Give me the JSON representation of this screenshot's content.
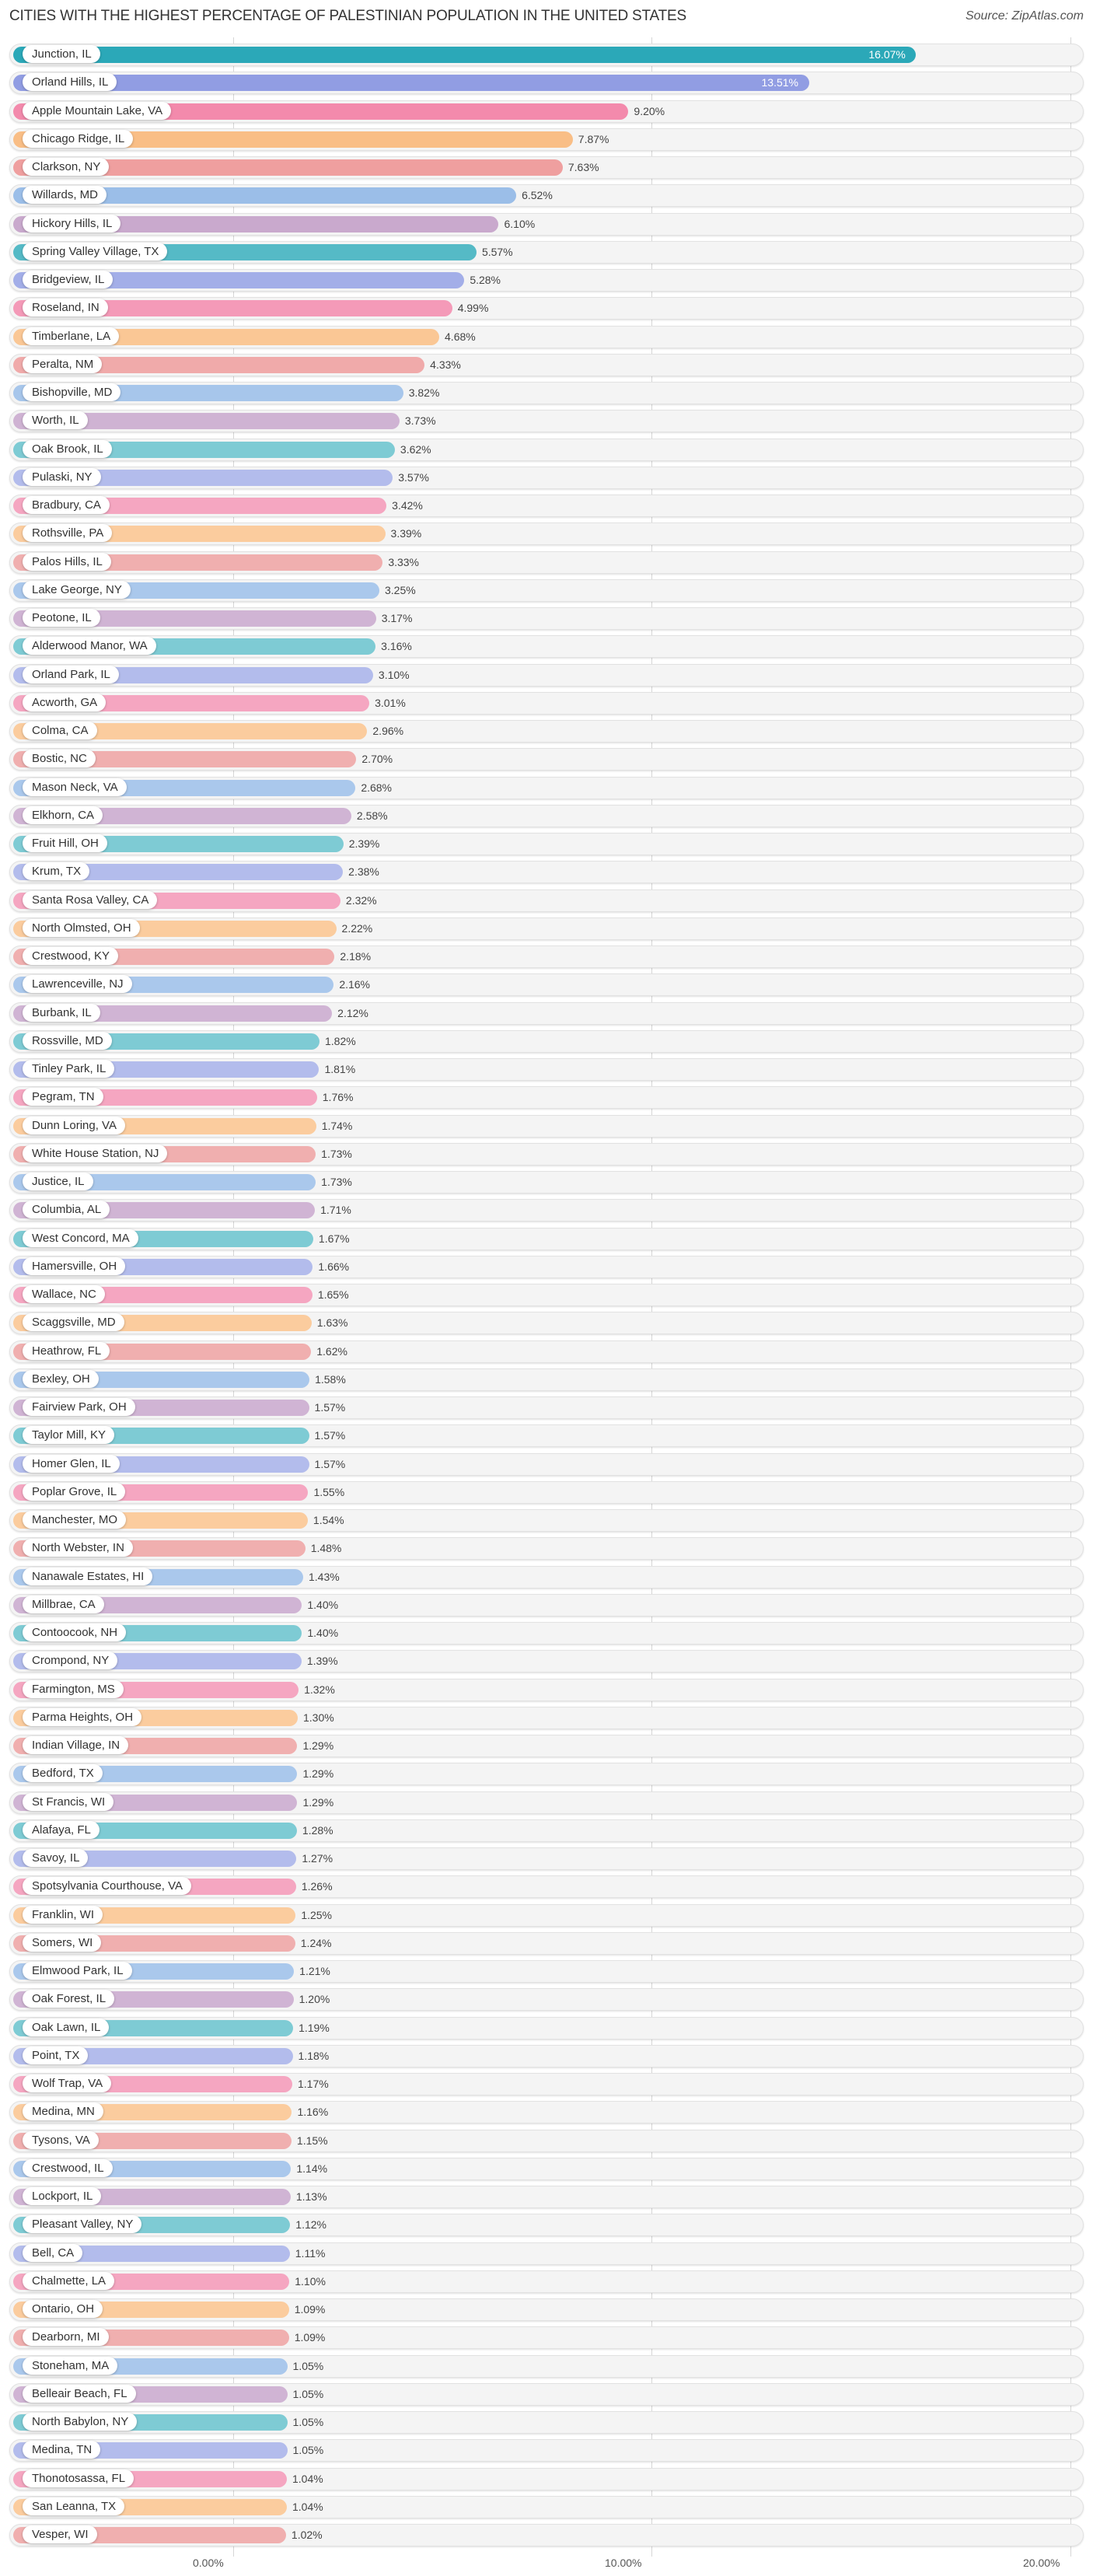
{
  "title": "CITIES WITH THE HIGHEST PERCENTAGE OF PALESTINIAN POPULATION IN THE UNITED STATES",
  "source": "Source: ZipAtlas.com",
  "axis": {
    "ticks": [
      "0.00%",
      "10.00%",
      "20.00%"
    ]
  },
  "chart_data": {
    "type": "bar",
    "orientation": "horizontal",
    "title": "CITIES WITH THE HIGHEST PERCENTAGE OF PALESTINIAN POPULATION IN THE UNITED STATES",
    "xlabel": "",
    "ylabel": "",
    "xlim": [
      0,
      20
    ],
    "x_ticks": [
      "0.00%",
      "10.00%",
      "20.00%"
    ],
    "grid": true,
    "legend": null,
    "categories": [
      "Junction, IL",
      "Orland Hills, IL",
      "Apple Mountain Lake, VA",
      "Chicago Ridge, IL",
      "Clarkson, NY",
      "Willards, MD",
      "Hickory Hills, IL",
      "Spring Valley Village, TX",
      "Bridgeview, IL",
      "Roseland, IN",
      "Timberlane, LA",
      "Peralta, NM",
      "Bishopville, MD",
      "Worth, IL",
      "Oak Brook, IL",
      "Pulaski, NY",
      "Bradbury, CA",
      "Rothsville, PA",
      "Palos Hills, IL",
      "Lake George, NY",
      "Peotone, IL",
      "Alderwood Manor, WA",
      "Orland Park, IL",
      "Acworth, GA",
      "Colma, CA",
      "Bostic, NC",
      "Mason Neck, VA",
      "Elkhorn, CA",
      "Fruit Hill, OH",
      "Krum, TX",
      "Santa Rosa Valley, CA",
      "North Olmsted, OH",
      "Crestwood, KY",
      "Lawrenceville, NJ",
      "Burbank, IL",
      "Rossville, MD",
      "Tinley Park, IL",
      "Pegram, TN",
      "Dunn Loring, VA",
      "White House Station, NJ",
      "Justice, IL",
      "Columbia, AL",
      "West Concord, MA",
      "Hamersville, OH",
      "Wallace, NC",
      "Scaggsville, MD",
      "Heathrow, FL",
      "Bexley, OH",
      "Fairview Park, OH",
      "Taylor Mill, KY",
      "Homer Glen, IL",
      "Poplar Grove, IL",
      "Manchester, MO",
      "North Webster, IN",
      "Nanawale Estates, HI",
      "Millbrae, CA",
      "Contoocook, NH",
      "Crompond, NY",
      "Farmington, MS",
      "Parma Heights, OH",
      "Indian Village, IN",
      "Bedford, TX",
      "St Francis, WI",
      "Alafaya, FL",
      "Savoy, IL",
      "Spotsylvania Courthouse, VA",
      "Franklin, WI",
      "Somers, WI",
      "Elmwood Park, IL",
      "Oak Forest, IL",
      "Oak Lawn, IL",
      "Point, TX",
      "Wolf Trap, VA",
      "Medina, MN",
      "Tysons, VA",
      "Crestwood, IL",
      "Lockport, IL",
      "Pleasant Valley, NY",
      "Bell, CA",
      "Chalmette, LA",
      "Ontario, OH",
      "Dearborn, MI",
      "Stoneham, MA",
      "Belleair Beach, FL",
      "North Babylon, NY",
      "Medina, TN",
      "Thonotosassa, FL",
      "San Leanna, TX",
      "Vesper, WI"
    ],
    "values": [
      16.07,
      13.51,
      9.2,
      7.87,
      7.63,
      6.52,
      6.1,
      5.57,
      5.28,
      4.99,
      4.68,
      4.33,
      3.82,
      3.73,
      3.62,
      3.57,
      3.42,
      3.39,
      3.33,
      3.25,
      3.17,
      3.16,
      3.1,
      3.01,
      2.96,
      2.7,
      2.68,
      2.58,
      2.39,
      2.38,
      2.32,
      2.22,
      2.18,
      2.16,
      2.12,
      1.82,
      1.81,
      1.76,
      1.74,
      1.73,
      1.73,
      1.71,
      1.67,
      1.66,
      1.65,
      1.63,
      1.62,
      1.58,
      1.57,
      1.57,
      1.57,
      1.55,
      1.54,
      1.48,
      1.43,
      1.4,
      1.4,
      1.39,
      1.32,
      1.3,
      1.29,
      1.29,
      1.29,
      1.28,
      1.27,
      1.26,
      1.25,
      1.24,
      1.21,
      1.2,
      1.19,
      1.18,
      1.17,
      1.16,
      1.15,
      1.14,
      1.13,
      1.12,
      1.11,
      1.1,
      1.09,
      1.09,
      1.05,
      1.05,
      1.05,
      1.05,
      1.04,
      1.04,
      1.02
    ],
    "value_labels": [
      "16.07%",
      "13.51%",
      "9.20%",
      "7.87%",
      "7.63%",
      "6.52%",
      "6.10%",
      "5.57%",
      "5.28%",
      "4.99%",
      "4.68%",
      "4.33%",
      "3.82%",
      "3.73%",
      "3.62%",
      "3.57%",
      "3.42%",
      "3.39%",
      "3.33%",
      "3.25%",
      "3.17%",
      "3.16%",
      "3.10%",
      "3.01%",
      "2.96%",
      "2.70%",
      "2.68%",
      "2.58%",
      "2.39%",
      "2.38%",
      "2.32%",
      "2.22%",
      "2.18%",
      "2.16%",
      "2.12%",
      "1.82%",
      "1.81%",
      "1.76%",
      "1.74%",
      "1.73%",
      "1.73%",
      "1.71%",
      "1.67%",
      "1.66%",
      "1.65%",
      "1.63%",
      "1.62%",
      "1.58%",
      "1.57%",
      "1.57%",
      "1.57%",
      "1.55%",
      "1.54%",
      "1.48%",
      "1.43%",
      "1.40%",
      "1.40%",
      "1.39%",
      "1.32%",
      "1.30%",
      "1.29%",
      "1.29%",
      "1.29%",
      "1.28%",
      "1.27%",
      "1.26%",
      "1.25%",
      "1.24%",
      "1.21%",
      "1.20%",
      "1.19%",
      "1.18%",
      "1.17%",
      "1.16%",
      "1.15%",
      "1.14%",
      "1.13%",
      "1.12%",
      "1.11%",
      "1.10%",
      "1.09%",
      "1.09%",
      "1.05%",
      "1.05%",
      "1.05%",
      "1.05%",
      "1.04%",
      "1.04%",
      "1.02%"
    ],
    "palette_cycle": [
      "#2ba8b8",
      "#8e9be2",
      "#f385a9",
      "#f8ba80",
      "#ee9999",
      "#93b8e6",
      "#c4a1c8"
    ]
  }
}
